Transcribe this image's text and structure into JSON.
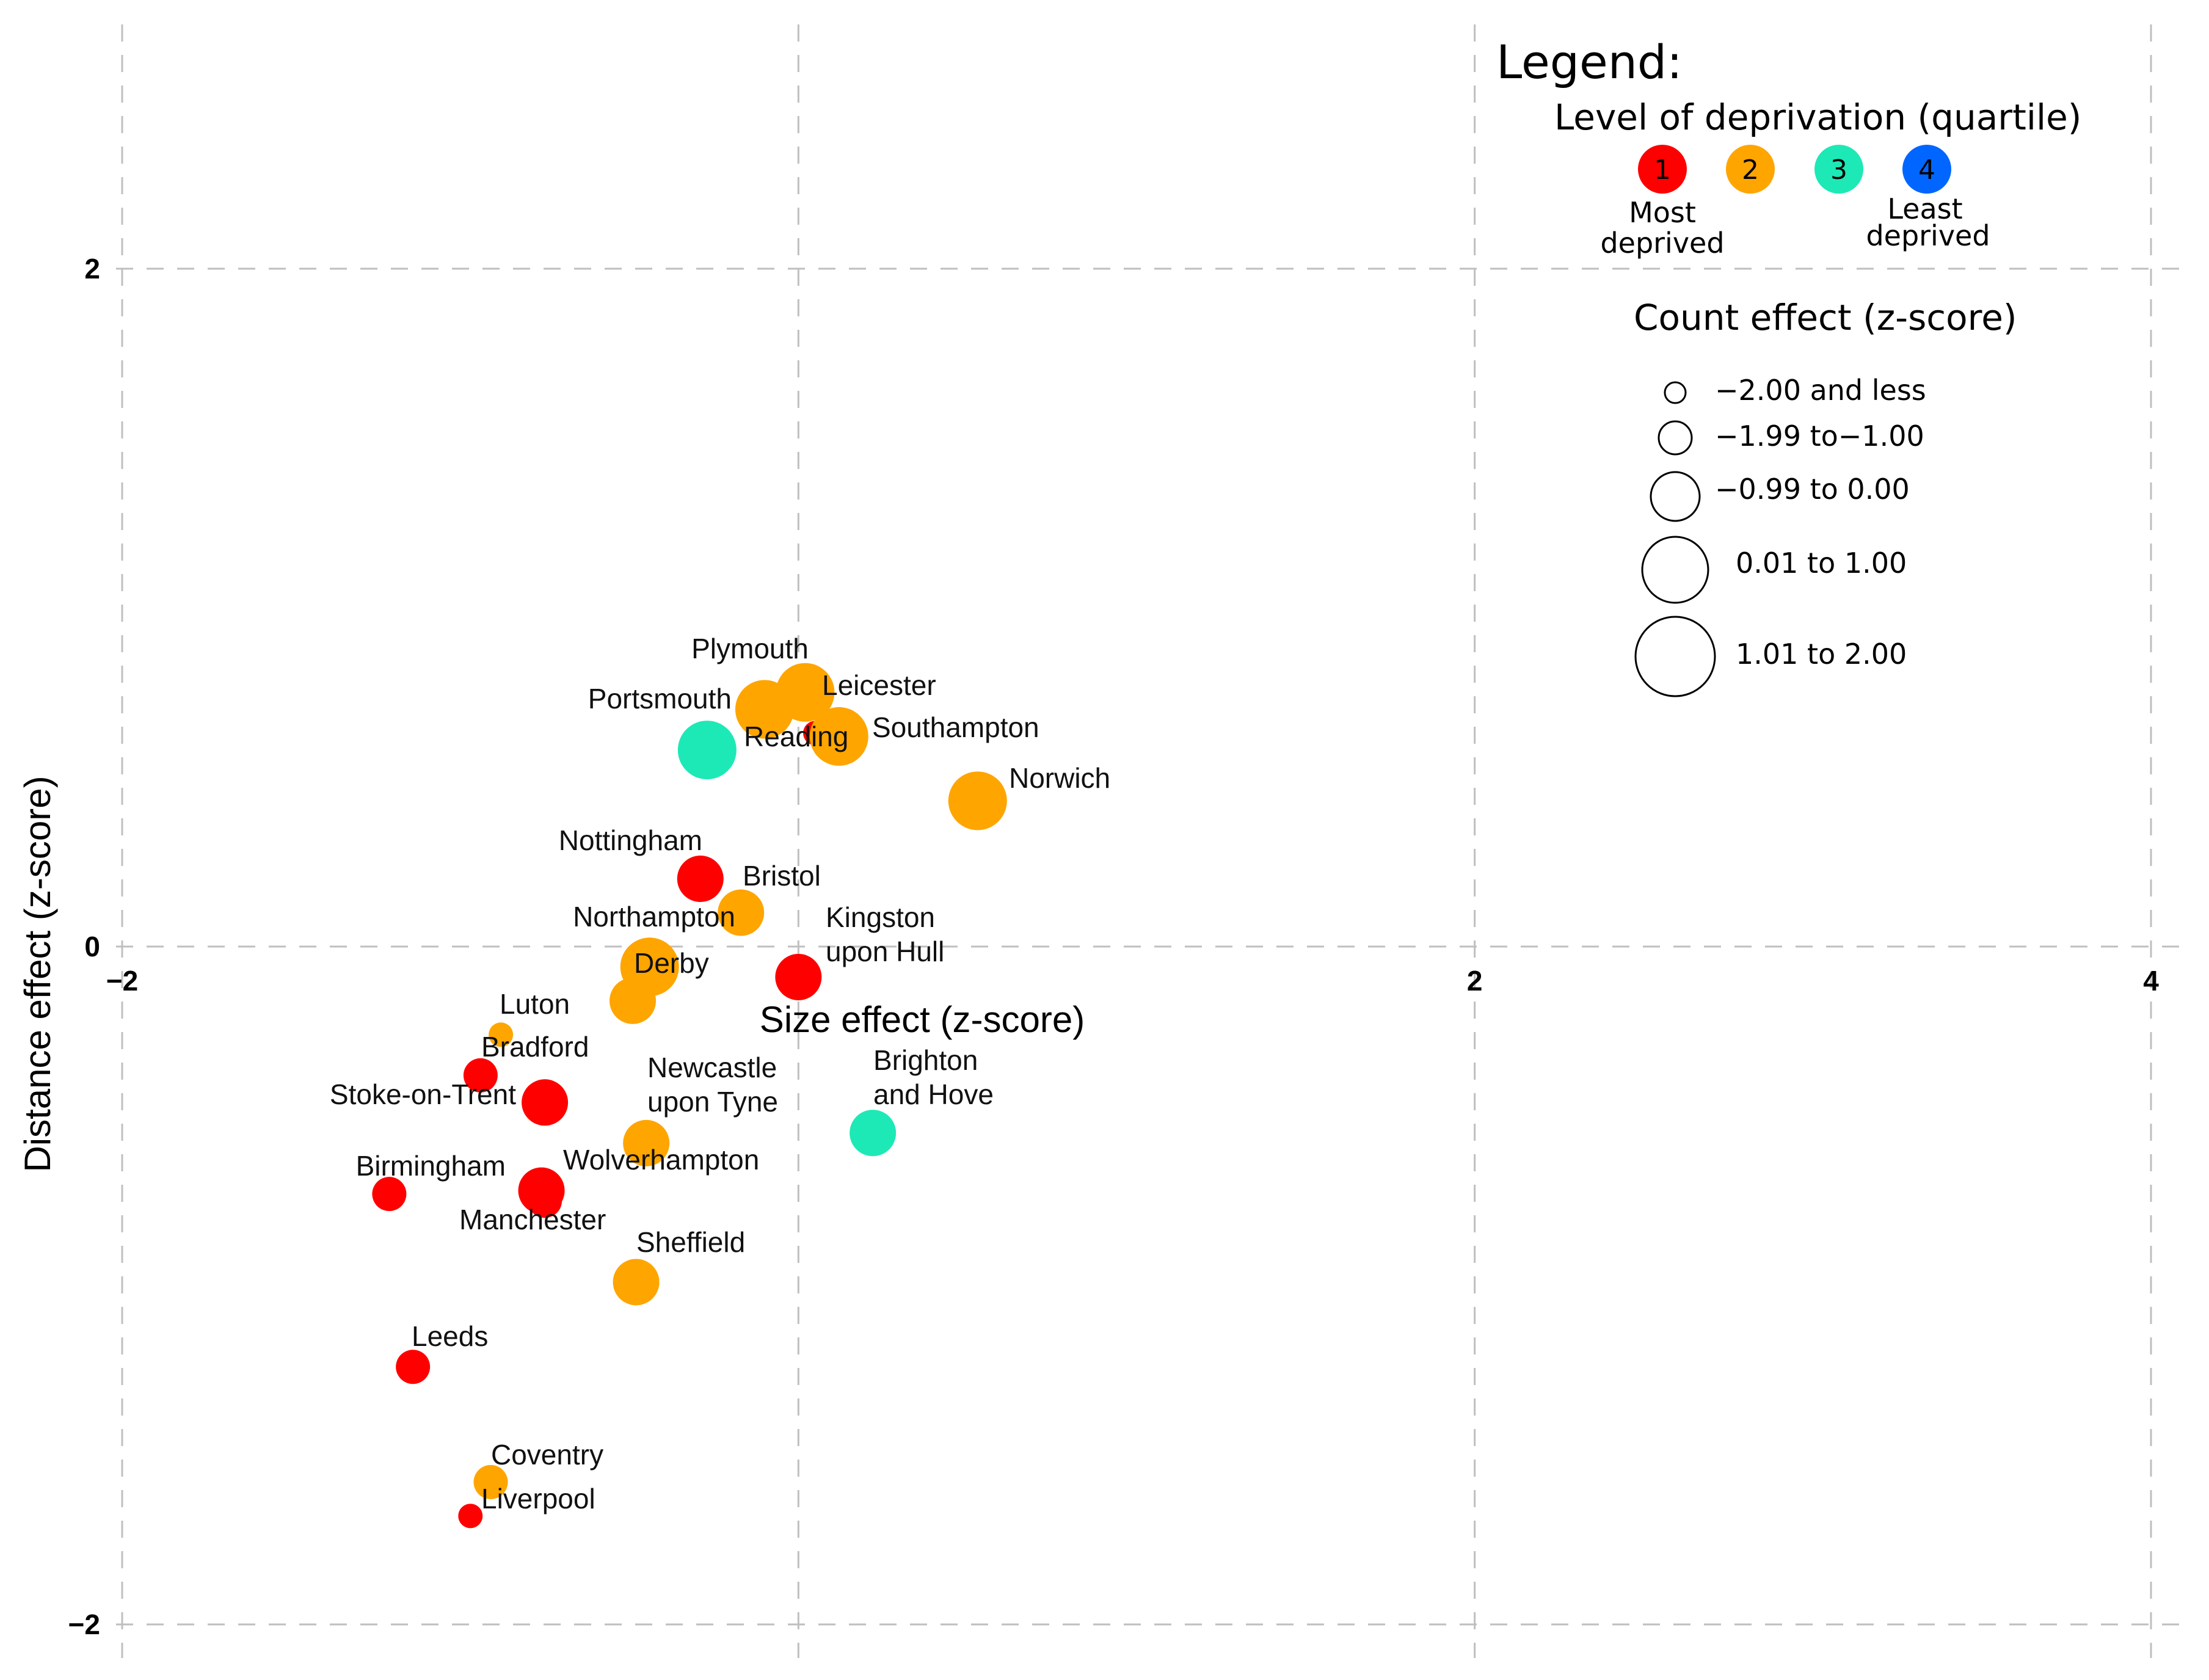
{
  "chart_data": {
    "type": "scatter",
    "xlabel": "Size effect (z-score)",
    "ylabel": "Distance effect (z-score)",
    "xlim": [
      -2,
      4
    ],
    "ylim": [
      -2,
      2
    ],
    "x_ticks": [
      {
        "value": -2,
        "label": "−2"
      },
      {
        "value": 0,
        "label": "0"
      },
      {
        "value": 2,
        "label": "2"
      },
      {
        "value": 4,
        "label": "4"
      }
    ],
    "y_ticks": [
      {
        "value": -2,
        "label": "−2"
      },
      {
        "value": 0,
        "label": "0"
      },
      {
        "value": 2,
        "label": "2"
      }
    ],
    "grid": true,
    "quartile_colors": {
      "1": "#ff0000",
      "2": "#ffa500",
      "3": "#1de9b6",
      "4": "#0066ff"
    },
    "points": [
      {
        "name": "Plymouth",
        "x": 0.02,
        "y": 0.75,
        "quartile": 2,
        "size_class": 4
      },
      {
        "name": "Portsmouth",
        "x": -0.1,
        "y": 0.7,
        "quartile": 2,
        "size_class": 4
      },
      {
        "name": "Leicester",
        "x": 0.05,
        "y": 0.63,
        "quartile": 1,
        "size_class": 1
      },
      {
        "name": "Reading",
        "x": -0.27,
        "y": 0.58,
        "quartile": 3,
        "size_class": 4
      },
      {
        "name": "Southampton",
        "x": 0.12,
        "y": 0.62,
        "quartile": 2,
        "size_class": 4
      },
      {
        "name": "Norwich",
        "x": 0.53,
        "y": 0.43,
        "quartile": 2,
        "size_class": 4
      },
      {
        "name": "Nottingham",
        "x": -0.29,
        "y": 0.2,
        "quartile": 1,
        "size_class": 3
      },
      {
        "name": "Bristol",
        "x": -0.17,
        "y": 0.1,
        "quartile": 2,
        "size_class": 3
      },
      {
        "name": "Northampton",
        "x": -0.44,
        "y": -0.06,
        "quartile": 2,
        "size_class": 4
      },
      {
        "name": "Derby",
        "x": -0.49,
        "y": -0.16,
        "quartile": 2,
        "size_class": 3
      },
      {
        "name": "Kingston upon Hull",
        "x": 0.0,
        "y": -0.09,
        "quartile": 1,
        "size_class": 3
      },
      {
        "name": "Luton",
        "x": -0.88,
        "y": -0.26,
        "quartile": 2,
        "size_class": 1
      },
      {
        "name": "Bradford",
        "x": -0.94,
        "y": -0.38,
        "quartile": 1,
        "size_class": 2
      },
      {
        "name": "Stoke-on-Trent",
        "x": -0.75,
        "y": -0.46,
        "quartile": 1,
        "size_class": 3
      },
      {
        "name": "Newcastle upon Tyne",
        "x": -0.45,
        "y": -0.58,
        "quartile": 2,
        "size_class": 3
      },
      {
        "name": "Brighton and Hove",
        "x": 0.22,
        "y": -0.55,
        "quartile": 3,
        "size_class": 3
      },
      {
        "name": "Wolverhampton",
        "x": -0.76,
        "y": -0.72,
        "quartile": 1,
        "size_class": 3
      },
      {
        "name": "Birmingham",
        "x": -1.21,
        "y": -0.73,
        "quartile": 1,
        "size_class": 2
      },
      {
        "name": "Manchester",
        "x": -0.75,
        "y": -0.75,
        "quartile": 1,
        "size_class": 2
      },
      {
        "name": "Sheffield",
        "x": -0.48,
        "y": -0.99,
        "quartile": 2,
        "size_class": 3
      },
      {
        "name": "Leeds",
        "x": -1.14,
        "y": -1.24,
        "quartile": 1,
        "size_class": 2
      },
      {
        "name": "Coventry",
        "x": -0.91,
        "y": -1.58,
        "quartile": 2,
        "size_class": 2
      },
      {
        "name": "Liverpool",
        "x": -0.97,
        "y": -1.68,
        "quartile": 1,
        "size_class": 1
      }
    ]
  },
  "labels": {
    "plymouth": "Plymouth",
    "portsmouth": "Portsmouth",
    "leicester": "Leicester",
    "reading": "Reading",
    "southampton": "Southampton",
    "norwich": "Norwich",
    "nottingham": "Nottingham",
    "bristol": "Bristol",
    "northampton": "Northampton",
    "derby": "Derby",
    "kingston_1": "Kingston",
    "kingston_2": "upon Hull",
    "luton": "Luton",
    "bradford": "Bradford",
    "stoke": "Stoke-on-Trent",
    "newcastle_1": "Newcastle",
    "newcastle_2": "upon Tyne",
    "brighton_1": "Brighton",
    "brighton_2": "and Hove",
    "wolverhampton": "Wolverhampton",
    "birmingham": "Birmingham",
    "manchester": "Manchester",
    "sheffield": "Sheffield",
    "leeds": "Leeds",
    "coventry": "Coventry",
    "liverpool": "Liverpool"
  },
  "legend": {
    "title": "Legend:",
    "deprivation_title": "Level of deprivation (quartile)",
    "quartiles": [
      {
        "label": "1",
        "color": "#ff0000"
      },
      {
        "label": "2",
        "color": "#ffa500"
      },
      {
        "label": "3",
        "color": "#1de9b6"
      },
      {
        "label": "4",
        "color": "#0066ff"
      }
    ],
    "most_1": "Most",
    "most_2": "deprived",
    "least_1": "Least",
    "least_2": "deprived",
    "count_title": "Count effect (z-score)",
    "size_classes": [
      {
        "label": "−2.00 and less"
      },
      {
        "label": "−1.99 to−1.00"
      },
      {
        "label": "−0.99 to 0.00"
      },
      {
        "label": "0.01 to 1.00"
      },
      {
        "label": "1.01 to 2.00"
      }
    ]
  }
}
